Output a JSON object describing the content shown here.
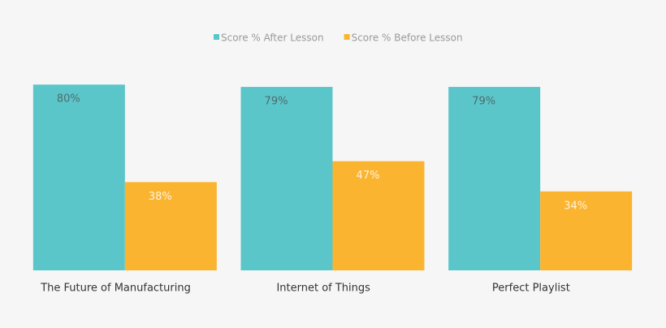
{
  "chart_data": {
    "type": "bar",
    "categories": [
      "The Future of Manufacturing",
      "Internet of Things",
      "Perfect Playlist"
    ],
    "series": [
      {
        "name": "Score % After Lesson",
        "color": "#5bc6ca",
        "values": [
          80,
          79,
          79
        ],
        "value_labels": [
          "80%",
          "79%",
          "79%"
        ]
      },
      {
        "name": "Score % Before Lesson",
        "color": "#fbb430",
        "values": [
          38,
          47,
          34
        ],
        "value_labels": [
          "38%",
          "47%",
          "34%"
        ]
      }
    ],
    "ylim": [
      0,
      100
    ]
  }
}
